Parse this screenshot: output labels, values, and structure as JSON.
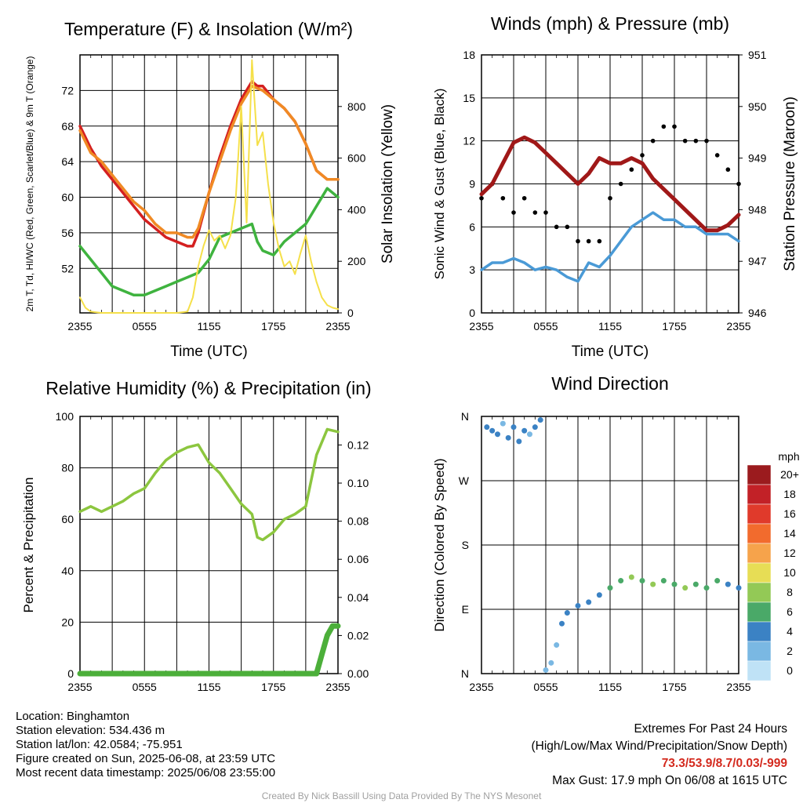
{
  "colors": {
    "red": "#d42020",
    "orange": "#f08a24",
    "green": "#3fb33f",
    "yellow": "#f5e04a",
    "sonic_blue": "#4a9ad6",
    "gust_black": "#000000",
    "pressure_maroon": "#a01818",
    "rh_green": "#8cc63f",
    "precip_green": "#4caf3a"
  },
  "chart_data": [
    {
      "type": "line",
      "title": "Temperature (F) & Insolation (W/m²)",
      "xlabel": "Time (UTC)",
      "ylabel_left": "2m T, Td, HI/WC (Red, Green, Scarlet/Blue) & 9m T (Orange)",
      "ylabel_right": "Solar Insolation (Yellow)",
      "x_ticks": [
        "2355",
        "0555",
        "1155",
        "1755",
        "2355"
      ],
      "x_range_hours": [
        0,
        24
      ],
      "ylim": [
        47,
        76
      ],
      "y_ticks": [
        52,
        56,
        60,
        64,
        68,
        72
      ],
      "y2lim": [
        0,
        1000
      ],
      "y2_ticks": [
        0,
        200,
        400,
        600,
        800
      ],
      "grid": true,
      "series": [
        {
          "name": "2m T",
          "color": "red",
          "axis": "left",
          "x": [
            0,
            1,
            2,
            3,
            4,
            5,
            6,
            7,
            8,
            9,
            10,
            10.5,
            11,
            12,
            13,
            14,
            15,
            16,
            16.5,
            17,
            18,
            19,
            20,
            21,
            22,
            23,
            24
          ],
          "values": [
            68,
            65.5,
            63.5,
            62,
            60.5,
            59,
            57.5,
            56.5,
            55.5,
            55,
            54.5,
            54.5,
            56,
            60.5,
            64.5,
            68,
            71,
            73,
            72.5,
            72.5,
            71,
            70,
            68.5,
            66,
            63,
            62,
            62
          ]
        },
        {
          "name": "9m T",
          "color": "orange",
          "axis": "left",
          "x": [
            0,
            1,
            2,
            3,
            4,
            5,
            6,
            7,
            8,
            9,
            10,
            10.5,
            11,
            12,
            13,
            14,
            15,
            16,
            17,
            18,
            19,
            20,
            21,
            22,
            23,
            24
          ],
          "values": [
            67.5,
            65,
            64,
            62.5,
            61,
            59.5,
            58.5,
            57,
            56,
            56,
            55.5,
            55.5,
            56.5,
            60.5,
            64,
            67.5,
            70.5,
            72.5,
            72,
            71,
            70,
            68.5,
            66,
            63,
            62,
            62
          ]
        },
        {
          "name": "2m Td",
          "color": "green",
          "axis": "left",
          "x": [
            0,
            1,
            2,
            3,
            4,
            5,
            6,
            7,
            8,
            9,
            10,
            11,
            12,
            13,
            14,
            15,
            16,
            16.5,
            17,
            18,
            19,
            20,
            21,
            22,
            23,
            24
          ],
          "values": [
            54.5,
            53,
            51.5,
            50,
            49.5,
            49,
            49,
            49.5,
            50,
            50.5,
            51,
            51.5,
            53,
            55.5,
            56,
            56.5,
            57,
            55,
            54,
            53.5,
            55,
            56,
            57,
            59,
            61,
            60
          ]
        },
        {
          "name": "Solar Insolation",
          "color": "yellow",
          "axis": "right",
          "x": [
            0,
            0.5,
            1,
            2,
            3,
            4,
            5,
            6,
            7,
            8,
            9,
            10,
            10.5,
            11,
            11.5,
            12,
            12.5,
            13,
            13.5,
            14,
            14.5,
            15,
            15.5,
            16,
            16.5,
            17,
            17.5,
            18,
            18.5,
            19,
            19.5,
            20,
            20.5,
            21,
            21.5,
            22,
            22.5,
            23,
            23.5,
            24
          ],
          "values": [
            60,
            20,
            5,
            0,
            0,
            0,
            0,
            0,
            0,
            0,
            0,
            5,
            60,
            180,
            260,
            320,
            280,
            300,
            250,
            300,
            450,
            800,
            350,
            980,
            650,
            700,
            500,
            350,
            250,
            180,
            200,
            150,
            230,
            300,
            200,
            120,
            60,
            30,
            20,
            15
          ]
        }
      ]
    },
    {
      "type": "line",
      "title": "Winds (mph) & Pressure (mb)",
      "xlabel": "Time (UTC)",
      "ylabel_left": "Sonic Wind & Gust (Blue, Black)",
      "ylabel_right": "Station Pressure (Maroon)",
      "x_ticks": [
        "2355",
        "0555",
        "1155",
        "1755",
        "2355"
      ],
      "x_range_hours": [
        0,
        24
      ],
      "ylim": [
        0,
        18
      ],
      "y_ticks": [
        0,
        3,
        6,
        9,
        12,
        15,
        18
      ],
      "y2lim": [
        946,
        951
      ],
      "y2_ticks": [
        946,
        947,
        948,
        949,
        950,
        951
      ],
      "grid": true,
      "series": [
        {
          "name": "Sonic Wind",
          "color": "sonic_blue",
          "axis": "left",
          "x": [
            0,
            1,
            2,
            3,
            4,
            5,
            6,
            7,
            8,
            9,
            10,
            11,
            12,
            13,
            14,
            15,
            16,
            17,
            18,
            19,
            20,
            21,
            22,
            23,
            24
          ],
          "values": [
            3,
            3.5,
            3.5,
            3.8,
            3.5,
            3,
            3.2,
            3,
            2.5,
            2.2,
            3.5,
            3.2,
            4,
            5,
            6,
            6.5,
            7,
            6.5,
            6.5,
            6,
            6,
            5.5,
            5.5,
            5.5,
            5
          ]
        },
        {
          "name": "Gust",
          "color": "gust_black",
          "axis": "left",
          "style": "points",
          "x": [
            0,
            1,
            2,
            3,
            4,
            5,
            6,
            7,
            8,
            9,
            10,
            11,
            12,
            13,
            14,
            15,
            16,
            17,
            18,
            19,
            20,
            21,
            22,
            23,
            24
          ],
          "values": [
            8,
            9,
            8,
            7,
            8,
            7,
            7,
            6,
            6,
            5,
            5,
            5,
            8,
            9,
            10,
            11,
            12,
            13,
            13,
            12,
            12,
            12,
            11,
            10,
            9
          ]
        },
        {
          "name": "Station Pressure",
          "color": "pressure_maroon",
          "axis": "right",
          "x": [
            0,
            1,
            2,
            3,
            4,
            5,
            6,
            7,
            8,
            9,
            10,
            11,
            12,
            13,
            14,
            15,
            16,
            17,
            18,
            19,
            20,
            21,
            22,
            23,
            24
          ],
          "values": [
            948.3,
            948.5,
            948.9,
            949.3,
            949.4,
            949.3,
            949.1,
            948.9,
            948.7,
            948.5,
            948.7,
            949,
            948.9,
            948.9,
            949,
            948.9,
            948.6,
            948.4,
            948.2,
            948,
            947.8,
            947.6,
            947.6,
            947.7,
            947.9
          ]
        }
      ]
    },
    {
      "type": "line",
      "title": "Relative Humidity (%) & Precipitation (in)",
      "xlabel": "",
      "ylabel_left": "Percent & Precipitation",
      "x_ticks": [
        "2355",
        "0555",
        "1155",
        "1755",
        "2355"
      ],
      "x_range_hours": [
        0,
        24
      ],
      "ylim": [
        0,
        100
      ],
      "y_ticks": [
        0,
        20,
        40,
        60,
        80,
        100
      ],
      "y2lim": [
        0,
        0.135
      ],
      "y2_ticks": [
        0.0,
        0.02,
        0.04,
        0.06,
        0.08,
        0.1,
        0.12
      ],
      "grid": true,
      "series": [
        {
          "name": "Relative Humidity",
          "color": "rh_green",
          "axis": "left",
          "x": [
            0,
            1,
            2,
            3,
            4,
            5,
            6,
            7,
            8,
            9,
            10,
            11,
            12,
            13,
            14,
            15,
            16,
            16.5,
            17,
            18,
            19,
            20,
            21,
            22,
            23,
            24
          ],
          "values": [
            63,
            65,
            63,
            65,
            67,
            70,
            72,
            78,
            83,
            86,
            88,
            89,
            82,
            78,
            72,
            66,
            62,
            53,
            52,
            55,
            60,
            62,
            65,
            85,
            95,
            94
          ]
        },
        {
          "name": "Precipitation",
          "color": "precip_green",
          "axis": "right",
          "x": [
            0,
            1,
            2,
            3,
            4,
            5,
            6,
            7,
            8,
            9,
            10,
            11,
            12,
            13,
            14,
            15,
            16,
            17,
            18,
            19,
            20,
            21,
            22,
            22.5,
            23,
            23.5,
            24
          ],
          "values": [
            0,
            0,
            0,
            0,
            0,
            0,
            0,
            0,
            0,
            0,
            0,
            0,
            0,
            0,
            0,
            0,
            0,
            0,
            0,
            0,
            0,
            0,
            0,
            0.01,
            0.02,
            0.025,
            0.025
          ]
        }
      ]
    },
    {
      "type": "scatter",
      "title": "Wind Direction",
      "ylabel_left": "Direction (Colored By Speed)",
      "x_ticks": [
        "2355",
        "0555",
        "1155",
        "1755",
        "2355"
      ],
      "x_range_hours": [
        0,
        24
      ],
      "y_ticks": [
        "N",
        "E",
        "S",
        "W",
        "N"
      ],
      "ylim": [
        0,
        360
      ],
      "grid": true,
      "colorbar": {
        "title": "mph",
        "labels": [
          "20+",
          "18",
          "16",
          "14",
          "12",
          "10",
          "8",
          "6",
          "4",
          "2",
          "0"
        ],
        "colors": [
          "#9b1b1e",
          "#c22127",
          "#e03a2b",
          "#f26b2d",
          "#f6a34b",
          "#e7dd55",
          "#93c956",
          "#4aa968",
          "#3b82c4",
          "#7ab8e3",
          "#bfe2f6"
        ]
      },
      "points": [
        {
          "x": 0.5,
          "dir": 345,
          "speed": 3
        },
        {
          "x": 1,
          "dir": 340,
          "speed": 4
        },
        {
          "x": 1.5,
          "dir": 335,
          "speed": 3
        },
        {
          "x": 2,
          "dir": 350,
          "speed": 2
        },
        {
          "x": 2.5,
          "dir": 330,
          "speed": 4
        },
        {
          "x": 3,
          "dir": 345,
          "speed": 3
        },
        {
          "x": 3.5,
          "dir": 325,
          "speed": 3
        },
        {
          "x": 4,
          "dir": 340,
          "speed": 4
        },
        {
          "x": 4.5,
          "dir": 335,
          "speed": 2
        },
        {
          "x": 5,
          "dir": 345,
          "speed": 3
        },
        {
          "x": 5.5,
          "dir": 355,
          "speed": 4
        },
        {
          "x": 6,
          "dir": 5,
          "speed": 2
        },
        {
          "x": 6.5,
          "dir": 15,
          "speed": 2
        },
        {
          "x": 7,
          "dir": 40,
          "speed": 2
        },
        {
          "x": 7.5,
          "dir": 70,
          "speed": 3
        },
        {
          "x": 8,
          "dir": 85,
          "speed": 3
        },
        {
          "x": 9,
          "dir": 95,
          "speed": 3
        },
        {
          "x": 10,
          "dir": 100,
          "speed": 4
        },
        {
          "x": 11,
          "dir": 110,
          "speed": 4
        },
        {
          "x": 12,
          "dir": 120,
          "speed": 5
        },
        {
          "x": 13,
          "dir": 130,
          "speed": 6
        },
        {
          "x": 14,
          "dir": 135,
          "speed": 7
        },
        {
          "x": 15,
          "dir": 130,
          "speed": 6
        },
        {
          "x": 16,
          "dir": 125,
          "speed": 7
        },
        {
          "x": 17,
          "dir": 130,
          "speed": 6
        },
        {
          "x": 18,
          "dir": 125,
          "speed": 5
        },
        {
          "x": 19,
          "dir": 120,
          "speed": 7
        },
        {
          "x": 20,
          "dir": 125,
          "speed": 6
        },
        {
          "x": 21,
          "dir": 120,
          "speed": 6
        },
        {
          "x": 22,
          "dir": 130,
          "speed": 5
        },
        {
          "x": 23,
          "dir": 125,
          "speed": 4
        },
        {
          "x": 24,
          "dir": 120,
          "speed": 4
        }
      ]
    }
  ],
  "info": {
    "location": "Location: Binghamton",
    "elevation": "Station elevation: 534.436 m",
    "latlon": "Station lat/lon: 42.0584; -75.951",
    "created": "Figure created on Sun, 2025-06-08, at 23:59 UTC",
    "recent": "Most recent data timestamp: 2025/06/08 23:55:00"
  },
  "extremes": {
    "title": "Extremes For Past 24 Hours",
    "legend": "(High/Low/Max Wind/Precipitation/Snow Depth)",
    "values": "73.3/53.9/8.7/0.03/-999",
    "max_gust": "Max Gust: 17.9 mph On 06/08 at 1615 UTC"
  },
  "credit": "Created By Nick Bassill Using Data Provided By The NYS Mesonet"
}
